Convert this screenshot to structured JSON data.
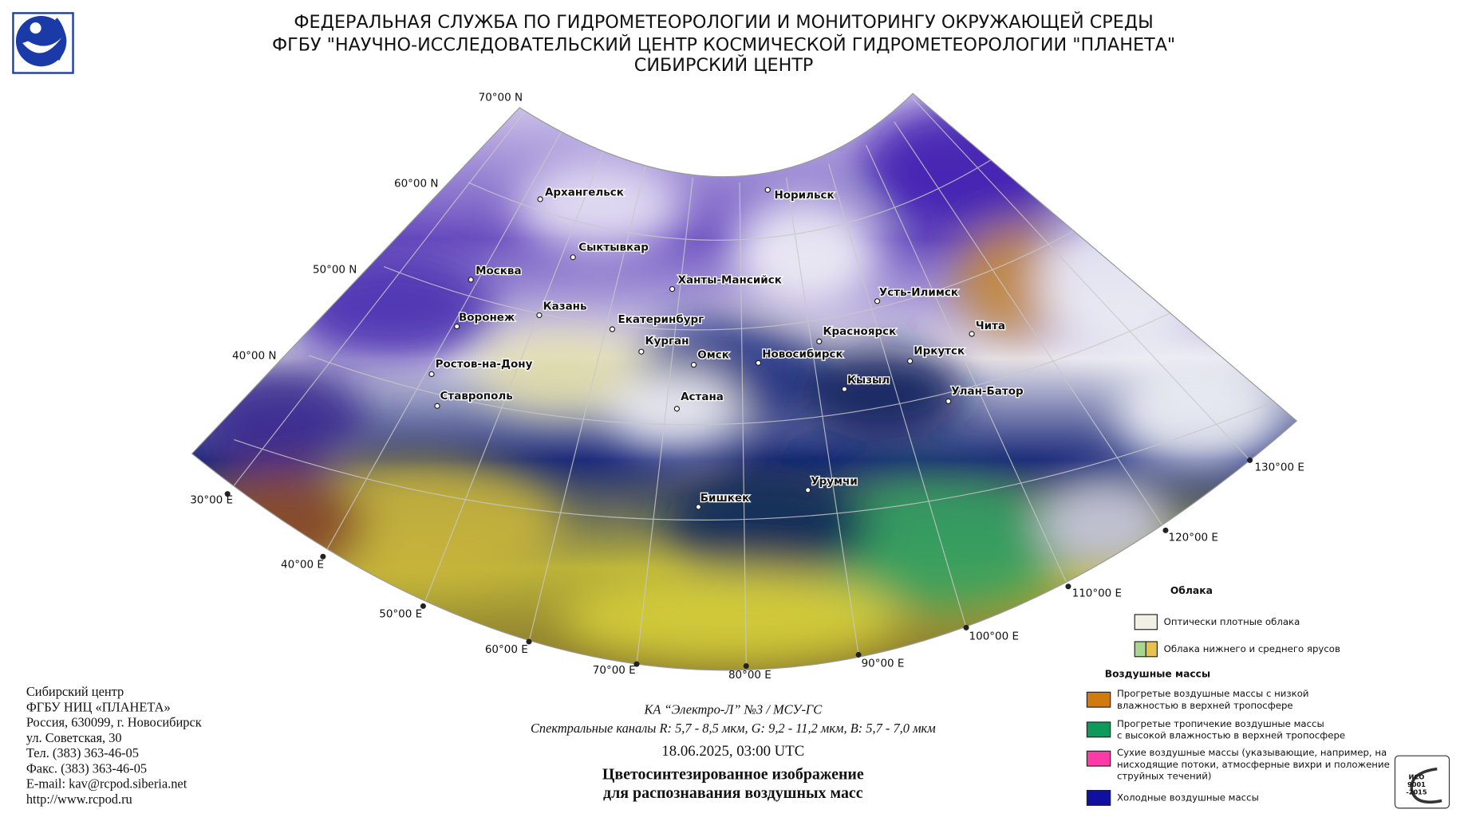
{
  "header": {
    "lines": [
      "ФЕДЕРАЛЬНАЯ СЛУЖБА ПО ГИДРОМЕТЕОРОЛОГИИ И МОНИТОРИНГУ ОКРУЖАЮЩЕЙ СРЕДЫ",
      "ФГБУ \"НАУЧНО-ИССЛЕДОВАТЕЛЬСКИЙ ЦЕНТР КОСМИЧЕСКОЙ ГИДРОМЕТЕОРОЛОГИИ \"ПЛАНЕТА\"",
      "СИБИРСКИЙ ЦЕНТР"
    ]
  },
  "map": {
    "latitude_labels": [
      "70°00 N",
      "60°00 N",
      "50°00 N",
      "40°00 N"
    ],
    "longitude_labels": [
      "30°00 E",
      "40°00 E",
      "50°00 E",
      "60°00 E",
      "70°00 E",
      "80°00 E",
      "90°00 E",
      "100°00 E",
      "110°00 E",
      "120°00 E",
      "130°00 E"
    ],
    "cities": [
      "Архангельск",
      "Норильск",
      "Сыктывкар",
      "Москва",
      "Ханты-Мансийск",
      "Усть-Илимск",
      "Казань",
      "Воронеж",
      "Екатеринбург",
      "Красноярск",
      "Чита",
      "Курган",
      "Омск",
      "Новосибирск",
      "Иркутск",
      "Ростов-на-Дону",
      "Кызыл",
      "Улан-Батор",
      "Ставрополь",
      "Астана",
      "Урумчи",
      "Бишкек"
    ]
  },
  "caption": {
    "satellite": "КА “Электро-Л” №3 / МСУ-ГС",
    "channels": "Спектральные каналы R: 5,7 - 8,5 мкм, G: 9,2 - 11,2 мкм, B: 5,7 - 7,0 мкм",
    "datetime": "18.06.2025, 03:00 UTC",
    "title": [
      "Цветосинтезированное изображение",
      "для распознавания воздушных масс"
    ]
  },
  "address": [
    "Сибирский центр",
    "ФГБУ НИЦ «ПЛАНЕТА»",
    "Россия, 630099, г. Новосибирск",
    "ул. Советская, 30",
    "Тел. (383) 363-46-05",
    "Факс. (383) 363-46-05",
    "E-mail: kav@rcpod.siberia.net",
    "http://www.rcpod.ru"
  ],
  "legend": {
    "clouds_title": "Облака",
    "clouds": [
      "Оптически плотные облака",
      "Облака нижнего и среднего ярусов"
    ],
    "air_masses_title": "Воздушные массы",
    "air_masses": [
      [
        "Прогретые воздушные массы с низкой",
        "влажностью в верхней тропосфере"
      ],
      [
        "Прогретые тропичекие воздушные массы",
        "с высокой влажностью в верхней тропосфере"
      ],
      [
        "Сухие воздушные массы (указывающие, например, на",
        "нисходящие потоки, атмосферные вихри и положение",
        "струйных течений)"
      ],
      [
        "Холодные воздушные массы"
      ]
    ]
  },
  "certificate": [
    "ИСО",
    "9001",
    "-2015"
  ]
}
